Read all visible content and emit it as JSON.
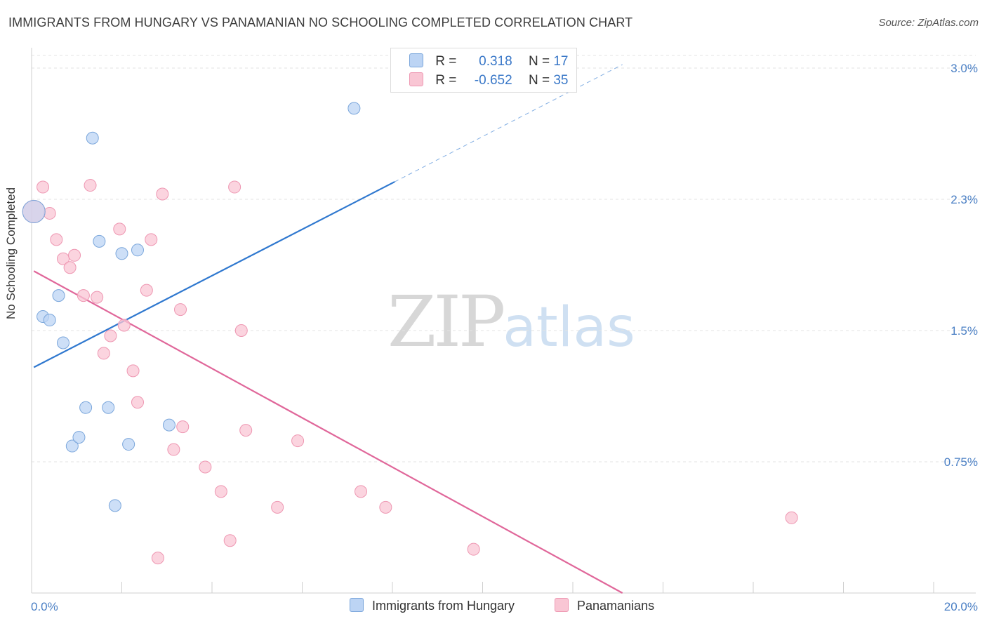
{
  "header": {
    "title": "IMMIGRANTS FROM HUNGARY VS PANAMANIAN NO SCHOOLING COMPLETED CORRELATION CHART",
    "source": "Source: ZipAtlas.com"
  },
  "legend": {
    "rows": [
      {
        "r_label": "R =",
        "r_value": "0.318",
        "n_label": "N =",
        "n_value": "17"
      },
      {
        "r_label": "R =",
        "r_value": "-0.652",
        "n_label": "N =",
        "n_value": "35"
      }
    ]
  },
  "bottom_legend": {
    "series1": "Immigrants from Hungary",
    "series2": "Panamanians"
  },
  "watermark": {
    "zip": "ZIP",
    "atlas": "atlas"
  },
  "colors": {
    "blue_fill": "#bcd4f4",
    "blue_stroke": "#7aa6db",
    "blue_line": "#2f78cf",
    "pink_fill": "#f9c6d4",
    "pink_stroke": "#ee97b2",
    "pink_line": "#e0679a",
    "grid": "#e3e3e3",
    "tick_label": "#4a7fc4"
  },
  "chart_data": {
    "type": "scatter",
    "title": "IMMIGRANTS FROM HUNGARY VS PANAMANIAN NO SCHOOLING COMPLETED CORRELATION CHART",
    "xlabel": "",
    "ylabel": "No Schooling Completed",
    "xlim": [
      0,
      20
    ],
    "ylim": [
      0,
      3.0
    ],
    "x_tick_labels": [
      "0.0%",
      "20.0%"
    ],
    "y_ticks": [
      0.75,
      1.5,
      2.25,
      3.0
    ],
    "y_tick_labels": [
      "0.75%",
      "1.5%",
      "2.3%",
      "3.0%"
    ],
    "grid": true,
    "legend_placement": "top-center",
    "series": [
      {
        "name": "Immigrants from Hungary",
        "color": "#bcd4f4",
        "r": 0.318,
        "n": 17,
        "points": [
          {
            "x": 0.05,
            "y": 2.18,
            "big": true
          },
          {
            "x": 0.25,
            "y": 1.58
          },
          {
            "x": 0.4,
            "y": 1.56
          },
          {
            "x": 0.6,
            "y": 1.7
          },
          {
            "x": 0.7,
            "y": 1.43
          },
          {
            "x": 0.9,
            "y": 0.84
          },
          {
            "x": 1.05,
            "y": 0.89
          },
          {
            "x": 1.2,
            "y": 1.06
          },
          {
            "x": 1.35,
            "y": 2.6
          },
          {
            "x": 1.5,
            "y": 2.01
          },
          {
            "x": 1.7,
            "y": 1.06
          },
          {
            "x": 1.85,
            "y": 0.5
          },
          {
            "x": 2.0,
            "y": 1.94
          },
          {
            "x": 2.15,
            "y": 0.85
          },
          {
            "x": 2.35,
            "y": 1.96
          },
          {
            "x": 3.05,
            "y": 0.96
          },
          {
            "x": 7.15,
            "y": 2.77
          }
        ],
        "trend": {
          "x0": 0.05,
          "y0": 1.29,
          "x1": 8.05,
          "y1": 2.35,
          "dashed_to_x": 13.1,
          "dashed_to_y": 3.02
        }
      },
      {
        "name": "Panamanians",
        "color": "#f9c6d4",
        "r": -0.652,
        "n": 35,
        "points": [
          {
            "x": 0.25,
            "y": 2.32
          },
          {
            "x": 0.4,
            "y": 2.17
          },
          {
            "x": 0.55,
            "y": 2.02
          },
          {
            "x": 0.7,
            "y": 1.91
          },
          {
            "x": 0.85,
            "y": 1.86
          },
          {
            "x": 0.95,
            "y": 1.93
          },
          {
            "x": 1.15,
            "y": 1.7
          },
          {
            "x": 1.3,
            "y": 2.33
          },
          {
            "x": 1.45,
            "y": 1.69
          },
          {
            "x": 1.6,
            "y": 1.37
          },
          {
            "x": 1.75,
            "y": 1.47
          },
          {
            "x": 1.95,
            "y": 2.08
          },
          {
            "x": 2.05,
            "y": 1.53
          },
          {
            "x": 2.25,
            "y": 1.27
          },
          {
            "x": 2.35,
            "y": 1.09
          },
          {
            "x": 2.55,
            "y": 1.73
          },
          {
            "x": 2.65,
            "y": 2.02
          },
          {
            "x": 2.8,
            "y": 0.2
          },
          {
            "x": 2.9,
            "y": 2.28
          },
          {
            "x": 3.15,
            "y": 0.82
          },
          {
            "x": 3.3,
            "y": 1.62
          },
          {
            "x": 3.35,
            "y": 0.95
          },
          {
            "x": 3.85,
            "y": 0.72
          },
          {
            "x": 4.2,
            "y": 0.58
          },
          {
            "x": 4.4,
            "y": 0.3
          },
          {
            "x": 4.5,
            "y": 2.32
          },
          {
            "x": 4.65,
            "y": 1.5
          },
          {
            "x": 4.75,
            "y": 0.93
          },
          {
            "x": 5.45,
            "y": 0.49
          },
          {
            "x": 5.9,
            "y": 0.87
          },
          {
            "x": 7.3,
            "y": 0.58
          },
          {
            "x": 7.85,
            "y": 0.49
          },
          {
            "x": 9.8,
            "y": 0.25
          },
          {
            "x": 16.85,
            "y": 0.43
          },
          {
            "x": 0.05,
            "y": 2.18,
            "big": true
          }
        ],
        "trend": {
          "x0": 0.05,
          "y0": 1.84,
          "x1": 13.1,
          "y1": 0.0
        }
      }
    ]
  }
}
